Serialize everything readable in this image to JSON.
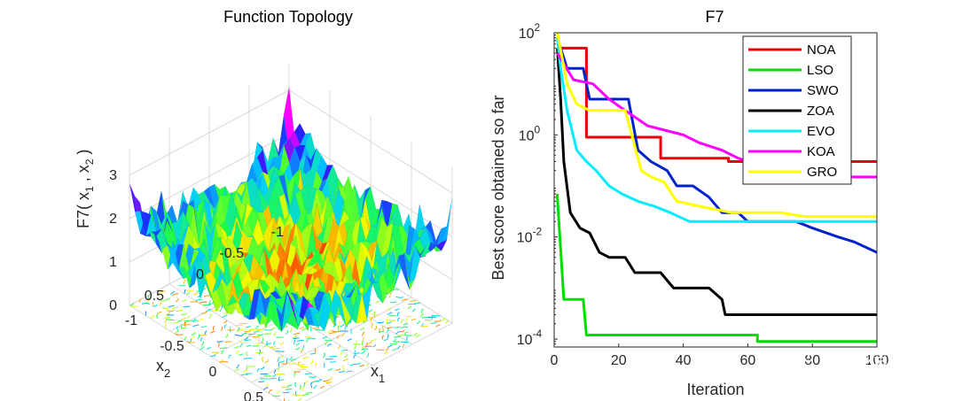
{
  "watermark": "知乎 @IT猿手",
  "chart_data": [
    {
      "type": "surface",
      "title": "Function Topology",
      "zlabel": "F7( x",
      "zlabel_parts": [
        "F7( x",
        "1",
        " , x",
        "2",
        " )"
      ],
      "xlabel": "x",
      "xlabel_sub": "1",
      "ylabel": "x",
      "ylabel_sub": "2",
      "x_ticks": [
        "-1",
        "-0.5",
        "0",
        "0.5"
      ],
      "y_ticks": [
        "-1",
        "-0.5",
        "0",
        "0.5"
      ],
      "z_ticks": [
        "0",
        "1",
        "2",
        "3"
      ],
      "colormap": [
        "#ff00ff",
        "#2020ff",
        "#00d0ff",
        "#20ff40",
        "#f0ff00",
        "#ff8000",
        "#ff0000"
      ]
    },
    {
      "type": "line",
      "title": "F7",
      "xlabel": "Iteration",
      "ylabel": "Best score obtained so far",
      "yscale": "log",
      "xlim": [
        0,
        100
      ],
      "ylim": [
        7e-05,
        100
      ],
      "x_ticks": [
        "0",
        "20",
        "40",
        "60",
        "80",
        "100"
      ],
      "y_ticks": [
        {
          "value": 100,
          "base": "10",
          "exp": "2"
        },
        {
          "value": 1,
          "base": "10",
          "exp": "0"
        },
        {
          "value": 0.01,
          "base": "10",
          "exp": "-2"
        },
        {
          "value": 0.0001,
          "base": "10",
          "exp": "-4"
        }
      ],
      "legend_position": "top-right",
      "series": [
        {
          "name": "NOA",
          "color": "#e8000b",
          "points": [
            [
              1,
              50
            ],
            [
              10,
              50
            ],
            [
              10,
              0.9
            ],
            [
              33,
              0.9
            ],
            [
              33,
              0.35
            ],
            [
              54,
              0.35
            ],
            [
              54,
              0.3
            ],
            [
              100,
              0.3
            ]
          ]
        },
        {
          "name": "LSO",
          "color": "#00dd00",
          "points": [
            [
              1,
              0.07
            ],
            [
              1,
              0.06
            ],
            [
              3,
              0.0006
            ],
            [
              9,
              0.0006
            ],
            [
              10,
              0.00012
            ],
            [
              63,
              0.00012
            ],
            [
              63,
              9e-05
            ],
            [
              100,
              9e-05
            ]
          ]
        },
        {
          "name": "SWO",
          "color": "#0022cc",
          "points": [
            [
              1,
              80
            ],
            [
              4,
              20
            ],
            [
              9,
              20
            ],
            [
              11,
              5
            ],
            [
              23,
              5
            ],
            [
              26,
              0.5
            ],
            [
              30,
              0.3
            ],
            [
              35,
              0.2
            ],
            [
              38,
              0.1
            ],
            [
              43,
              0.1
            ],
            [
              48,
              0.06
            ],
            [
              52,
              0.03
            ],
            [
              57,
              0.03
            ],
            [
              60,
              0.02
            ],
            [
              75,
              0.02
            ],
            [
              80,
              0.015
            ],
            [
              88,
              0.01
            ],
            [
              93,
              0.008
            ],
            [
              100,
              0.005
            ]
          ]
        },
        {
          "name": "ZOA",
          "color": "#000000",
          "points": [
            [
              1,
              50
            ],
            [
              2,
              5
            ],
            [
              3,
              0.3
            ],
            [
              5,
              0.03
            ],
            [
              8,
              0.015
            ],
            [
              11,
              0.012
            ],
            [
              14,
              0.005
            ],
            [
              17,
              0.004
            ],
            [
              22,
              0.004
            ],
            [
              25,
              0.002
            ],
            [
              33,
              0.002
            ],
            [
              37,
              0.001
            ],
            [
              48,
              0.001
            ],
            [
              52,
              0.0006
            ],
            [
              53,
              0.0003
            ],
            [
              100,
              0.0003
            ]
          ]
        },
        {
          "name": "EVO",
          "color": "#00eeff",
          "points": [
            [
              1,
              80
            ],
            [
              2,
              20
            ],
            [
              4,
              3
            ],
            [
              7,
              0.5
            ],
            [
              10,
              0.3
            ],
            [
              13,
              0.2
            ],
            [
              17,
              0.1
            ],
            [
              21,
              0.07
            ],
            [
              26,
              0.05
            ],
            [
              31,
              0.04
            ],
            [
              36,
              0.03
            ],
            [
              42,
              0.02
            ],
            [
              60,
              0.02
            ],
            [
              100,
              0.02
            ]
          ]
        },
        {
          "name": "KOA",
          "color": "#ff00ff",
          "points": [
            [
              1,
              40
            ],
            [
              6,
              12
            ],
            [
              12,
              10
            ],
            [
              17,
              5
            ],
            [
              22,
              3
            ],
            [
              29,
              1.5
            ],
            [
              40,
              1
            ],
            [
              45,
              0.7
            ],
            [
              52,
              0.5
            ],
            [
              57,
              0.35
            ],
            [
              60,
              0.3
            ],
            [
              70,
              0.2
            ],
            [
              80,
              0.15
            ],
            [
              100,
              0.15
            ]
          ]
        },
        {
          "name": "GRO",
          "color": "#ffff00",
          "points": [
            [
              1,
              100
            ],
            [
              4,
              10
            ],
            [
              7,
              4
            ],
            [
              11,
              3
            ],
            [
              22,
              3
            ],
            [
              27,
              0.2
            ],
            [
              30,
              0.15
            ],
            [
              34,
              0.12
            ],
            [
              38,
              0.05
            ],
            [
              45,
              0.04
            ],
            [
              55,
              0.03
            ],
            [
              70,
              0.03
            ],
            [
              78,
              0.025
            ],
            [
              100,
              0.025
            ]
          ]
        }
      ]
    }
  ]
}
